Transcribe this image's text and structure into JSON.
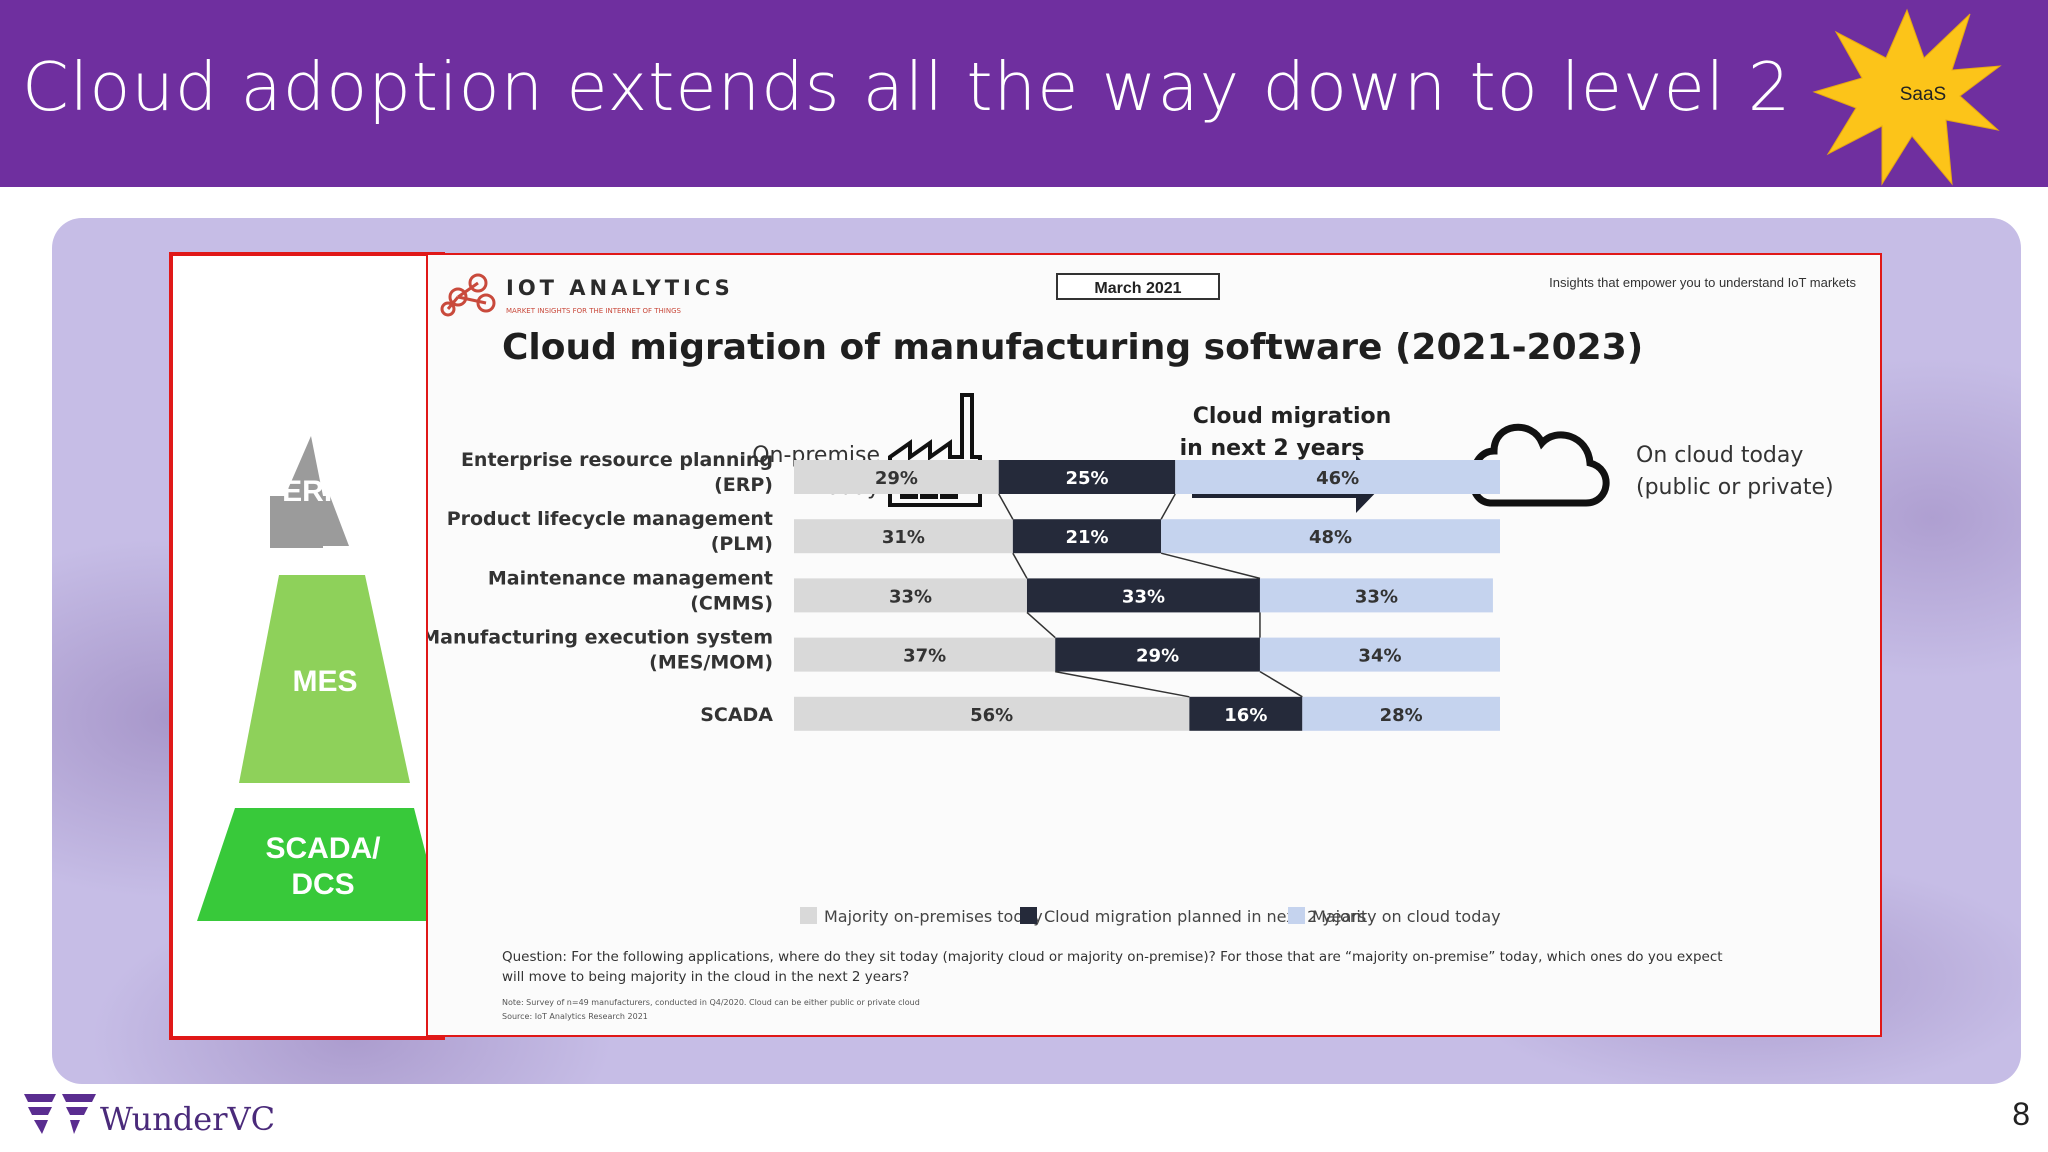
{
  "slide": {
    "title": "Cloud adoption extends all the way down to level 2",
    "badge": "SaaS",
    "page_number": "8",
    "brand_name": "WunderVC"
  },
  "pyramid": {
    "levels": [
      "ERP",
      "MES",
      "SCADA/ DCS"
    ],
    "colors": [
      "#9b9b9b",
      "#8ed15a",
      "#38c93a"
    ]
  },
  "chart_header": {
    "brand": "IOT ANALYTICS",
    "brand_tagline": "MARKET INSIGHTS FOR THE INTERNET OF THINGS",
    "date_badge": "March 2021",
    "tagline": "Insights that empower you to understand IoT markets"
  },
  "chart_data": {
    "type": "bar",
    "orientation": "horizontal-stacked",
    "title": "Cloud migration of manufacturing software (2021-2023)",
    "column_headers": {
      "on_premise": "On-premise today",
      "migration": "Cloud migration in next 2 years",
      "cloud": "On cloud today (public or private)"
    },
    "categories": [
      "Enterprise resource planning (ERP)",
      "Product lifecycle management (PLM)",
      "Maintenance management (CMMS)",
      "Manufacturing execution system (MES/MOM)",
      "SCADA"
    ],
    "series": [
      {
        "name": "Majority on-premises today",
        "values": [
          29,
          31,
          33,
          37,
          56
        ],
        "color": "#d9d9d9"
      },
      {
        "name": "Cloud migration planned in next 2 years",
        "values": [
          25,
          21,
          33,
          29,
          16
        ],
        "color": "#252a3a"
      },
      {
        "name": "Majority on cloud today",
        "values": [
          46,
          48,
          33,
          34,
          28
        ],
        "color": "#c5d3ee"
      }
    ],
    "unit": "%",
    "question": "Question: For the following applications, where do they sit today (majority cloud or majority on-premise)? For those that are “majority on-premise” today, which ones do you expect will move to being majority in the cloud in the next 2 years?",
    "note": "Note: Survey of n=49 manufacturers, conducted in Q4/2020. Cloud can be either public or private cloud",
    "source": "Source: IoT Analytics Research 2021"
  }
}
